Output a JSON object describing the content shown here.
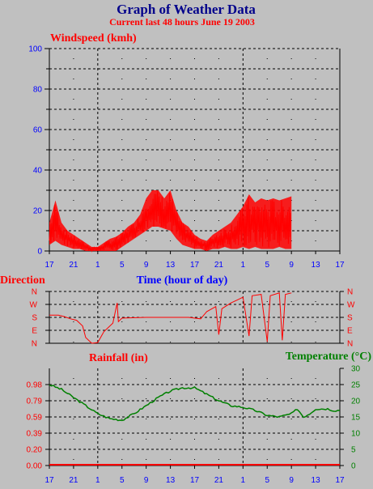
{
  "header": {
    "title": "Graph of Weather Data",
    "subtitle": "Current last 48 hours June 19 2003"
  },
  "colors": {
    "background": "#c0c0c0",
    "title": "#00008b",
    "red": "#ff0000",
    "blue": "#0000ff",
    "green": "#008000",
    "grid": "#000000"
  },
  "chart_data": [
    {
      "type": "area",
      "title": "Windspeed (kmh)",
      "xlabel": "Time (hour of day)",
      "ylabel": "",
      "ylim": [
        0,
        100
      ],
      "yticks": [
        0,
        20,
        40,
        60,
        80,
        100
      ],
      "x_tick_labels": [
        "17",
        "21",
        "1",
        "5",
        "9",
        "13",
        "17",
        "21",
        "1",
        "5",
        "9",
        "13",
        "17"
      ],
      "x_range_hours": [
        0,
        48
      ],
      "grid": true,
      "series": [
        {
          "color": "#ff0000",
          "envelope": [
            {
              "h": 0,
              "lo": 3,
              "hi": 14
            },
            {
              "h": 1,
              "lo": 5,
              "hi": 25
            },
            {
              "h": 2,
              "lo": 3,
              "hi": 14
            },
            {
              "h": 3,
              "lo": 2,
              "hi": 10
            },
            {
              "h": 4,
              "lo": 1,
              "hi": 8
            },
            {
              "h": 5,
              "lo": 1,
              "hi": 6
            },
            {
              "h": 6,
              "lo": 0,
              "hi": 4
            },
            {
              "h": 7,
              "lo": 0,
              "hi": 2
            },
            {
              "h": 8,
              "lo": 0,
              "hi": 2
            },
            {
              "h": 9,
              "lo": 0,
              "hi": 4
            },
            {
              "h": 10,
              "lo": 0,
              "hi": 6
            },
            {
              "h": 11,
              "lo": 0,
              "hi": 7
            },
            {
              "h": 12,
              "lo": 2,
              "hi": 9
            },
            {
              "h": 13,
              "lo": 4,
              "hi": 12
            },
            {
              "h": 14,
              "lo": 6,
              "hi": 14
            },
            {
              "h": 15,
              "lo": 8,
              "hi": 18
            },
            {
              "h": 16,
              "lo": 10,
              "hi": 26
            },
            {
              "h": 17,
              "lo": 12,
              "hi": 30
            },
            {
              "h": 18,
              "lo": 12,
              "hi": 30
            },
            {
              "h": 19,
              "lo": 11,
              "hi": 26
            },
            {
              "h": 20,
              "lo": 10,
              "hi": 30
            },
            {
              "h": 21,
              "lo": 6,
              "hi": 20
            },
            {
              "h": 22,
              "lo": 3,
              "hi": 14
            },
            {
              "h": 23,
              "lo": 2,
              "hi": 12
            },
            {
              "h": 24,
              "lo": 1,
              "hi": 8
            },
            {
              "h": 25,
              "lo": 1,
              "hi": 6
            },
            {
              "h": 26,
              "lo": 0,
              "hi": 5
            },
            {
              "h": 27,
              "lo": 1,
              "hi": 8
            },
            {
              "h": 28,
              "lo": 1,
              "hi": 10
            },
            {
              "h": 29,
              "lo": 2,
              "hi": 12
            },
            {
              "h": 30,
              "lo": 1,
              "hi": 14
            },
            {
              "h": 31,
              "lo": 1,
              "hi": 18
            },
            {
              "h": 32,
              "lo": 2,
              "hi": 22
            },
            {
              "h": 33,
              "lo": 1,
              "hi": 28
            },
            {
              "h": 34,
              "lo": 2,
              "hi": 24
            },
            {
              "h": 35,
              "lo": 1,
              "hi": 26
            },
            {
              "h": 36,
              "lo": 1,
              "hi": 25
            },
            {
              "h": 37,
              "lo": 1,
              "hi": 26
            },
            {
              "h": 38,
              "lo": 2,
              "hi": 25
            },
            {
              "h": 39,
              "lo": 1,
              "hi": 26
            },
            {
              "h": 40,
              "lo": 1,
              "hi": 27
            }
          ]
        }
      ]
    },
    {
      "type": "line",
      "title": "Direction",
      "xlabel": "",
      "ylabel": "",
      "y_labels": [
        "N",
        "E",
        "S",
        "W",
        "N"
      ],
      "ylim": [
        0,
        360
      ],
      "grid": true,
      "series": [
        {
          "color": "#ff0000",
          "points": [
            {
              "h": 0,
              "v": 195
            },
            {
              "h": 1.5,
              "v": 195
            },
            {
              "h": 2.5,
              "v": 185
            },
            {
              "h": 3.5,
              "v": 170
            },
            {
              "h": 4.5,
              "v": 160
            },
            {
              "h": 5.5,
              "v": 120
            },
            {
              "h": 6,
              "v": 40
            },
            {
              "h": 7,
              "v": 0
            },
            {
              "h": 8,
              "v": 5
            },
            {
              "h": 9,
              "v": 80
            },
            {
              "h": 10.5,
              "v": 140
            },
            {
              "h": 11.2,
              "v": 280
            },
            {
              "h": 11.4,
              "v": 150
            },
            {
              "h": 12,
              "v": 175
            },
            {
              "h": 16,
              "v": 180
            },
            {
              "h": 20,
              "v": 180
            },
            {
              "h": 23,
              "v": 180
            },
            {
              "h": 25,
              "v": 170
            },
            {
              "h": 26,
              "v": 220
            },
            {
              "h": 27.5,
              "v": 255
            },
            {
              "h": 28,
              "v": 60
            },
            {
              "h": 28.5,
              "v": 240
            },
            {
              "h": 30,
              "v": 280
            },
            {
              "h": 31,
              "v": 300
            },
            {
              "h": 32,
              "v": 320
            },
            {
              "h": 33,
              "v": 50
            },
            {
              "h": 33.5,
              "v": 330
            },
            {
              "h": 35,
              "v": 340
            },
            {
              "h": 36,
              "v": 10
            },
            {
              "h": 36.5,
              "v": 330
            },
            {
              "h": 38,
              "v": 350
            },
            {
              "h": 38.5,
              "v": 20
            },
            {
              "h": 39,
              "v": 340
            },
            {
              "h": 40,
              "v": 350
            }
          ]
        }
      ]
    },
    {
      "type": "line",
      "title": "Rainfall (in)",
      "xlabel": "",
      "ylabel": "Temperature (°C)",
      "ylim": [
        0,
        1.18
      ],
      "yticks_left": [
        "0.00",
        "0.20",
        "0.39",
        "0.59",
        "0.79",
        "0.98"
      ],
      "yticks_right": [
        0,
        5,
        10,
        15,
        20,
        25,
        30
      ],
      "x_tick_labels": [
        "17",
        "21",
        "1",
        "5",
        "9",
        "13",
        "17",
        "21",
        "1",
        "5",
        "9",
        "13",
        "17"
      ],
      "grid": true,
      "series": [
        {
          "name": "Rainfall (in)",
          "color": "#ff0000",
          "points": [
            {
              "h": 0,
              "v": 0
            },
            {
              "h": 48,
              "v": 0
            }
          ]
        },
        {
          "name": "Temperature (°C)",
          "color": "#008000",
          "axis": "right",
          "points": [
            {
              "h": 0,
              "v": 25
            },
            {
              "h": 2,
              "v": 23.5
            },
            {
              "h": 4,
              "v": 21
            },
            {
              "h": 6,
              "v": 18.5
            },
            {
              "h": 8,
              "v": 16
            },
            {
              "h": 10,
              "v": 14.5
            },
            {
              "h": 12,
              "v": 14
            },
            {
              "h": 14,
              "v": 16
            },
            {
              "h": 16,
              "v": 18.5
            },
            {
              "h": 18,
              "v": 21
            },
            {
              "h": 20,
              "v": 23
            },
            {
              "h": 22,
              "v": 24
            },
            {
              "h": 24,
              "v": 24
            },
            {
              "h": 26,
              "v": 22
            },
            {
              "h": 28,
              "v": 20
            },
            {
              "h": 30,
              "v": 18.5
            },
            {
              "h": 32,
              "v": 18
            },
            {
              "h": 34,
              "v": 17
            },
            {
              "h": 36,
              "v": 15.5
            },
            {
              "h": 38,
              "v": 15
            },
            {
              "h": 40,
              "v": 16
            },
            {
              "h": 41,
              "v": 17.5
            },
            {
              "h": 42,
              "v": 15
            },
            {
              "h": 43,
              "v": 16
            },
            {
              "h": 44,
              "v": 17.5
            },
            {
              "h": 46,
              "v": 17.5
            },
            {
              "h": 47,
              "v": 17
            },
            {
              "h": 48,
              "v": 17
            }
          ]
        }
      ]
    }
  ]
}
